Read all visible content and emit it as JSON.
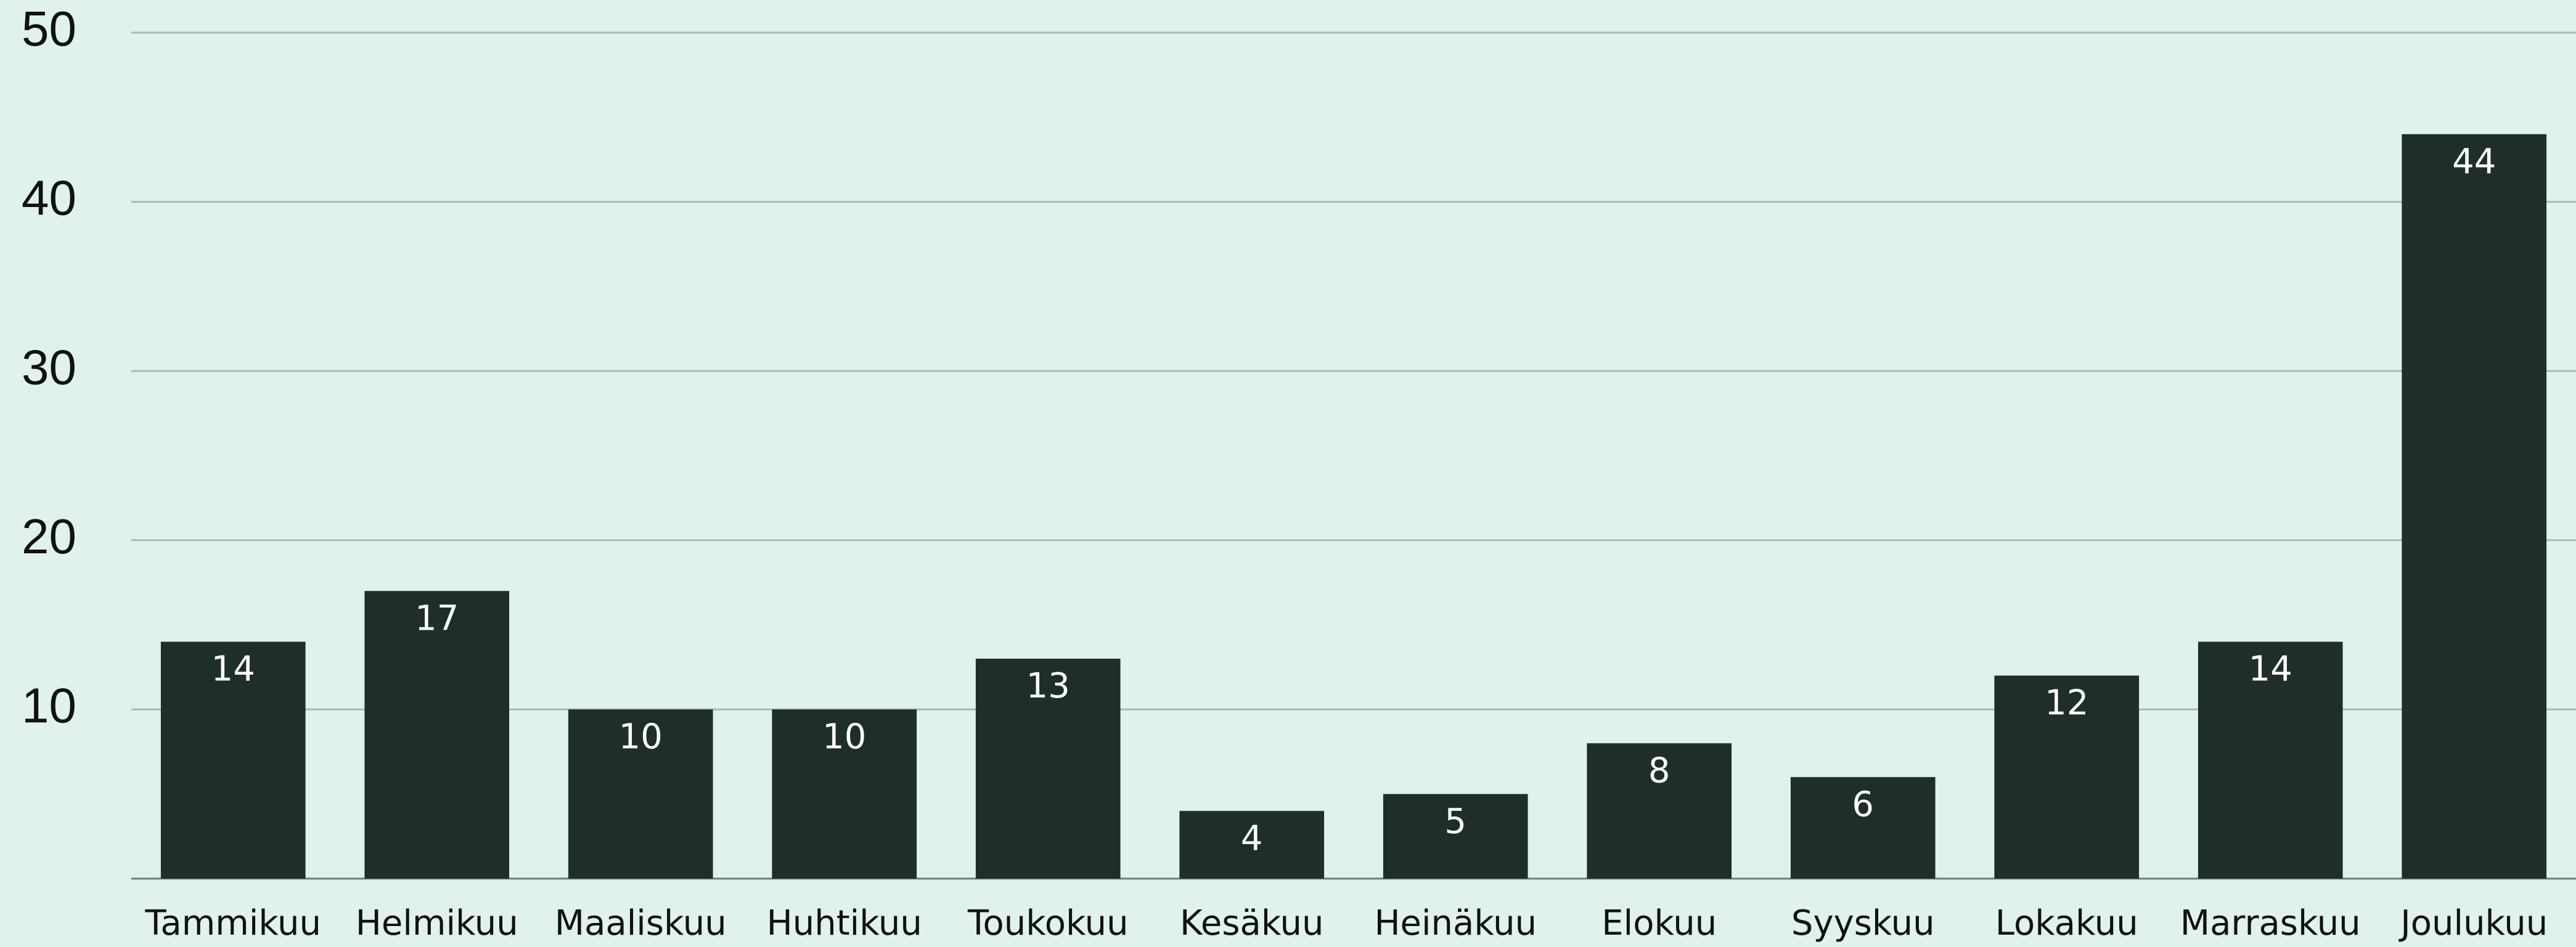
{
  "chart_data": {
    "type": "bar",
    "categories": [
      "Tammikuu",
      "Helmikuu",
      "Maaliskuu",
      "Huhtikuu",
      "Toukokuu",
      "Kesäkuu",
      "Heinäkuu",
      "Elokuu",
      "Syyskuu",
      "Lokakuu",
      "Marraskuu",
      "Joulukuu"
    ],
    "values": [
      14,
      17,
      10,
      10,
      13,
      4,
      5,
      8,
      6,
      12,
      14,
      44
    ],
    "color": "#1f2e2a",
    "ylim": [
      0,
      50
    ],
    "yticks": [
      10,
      20,
      30,
      40,
      50
    ],
    "grid": true
  }
}
